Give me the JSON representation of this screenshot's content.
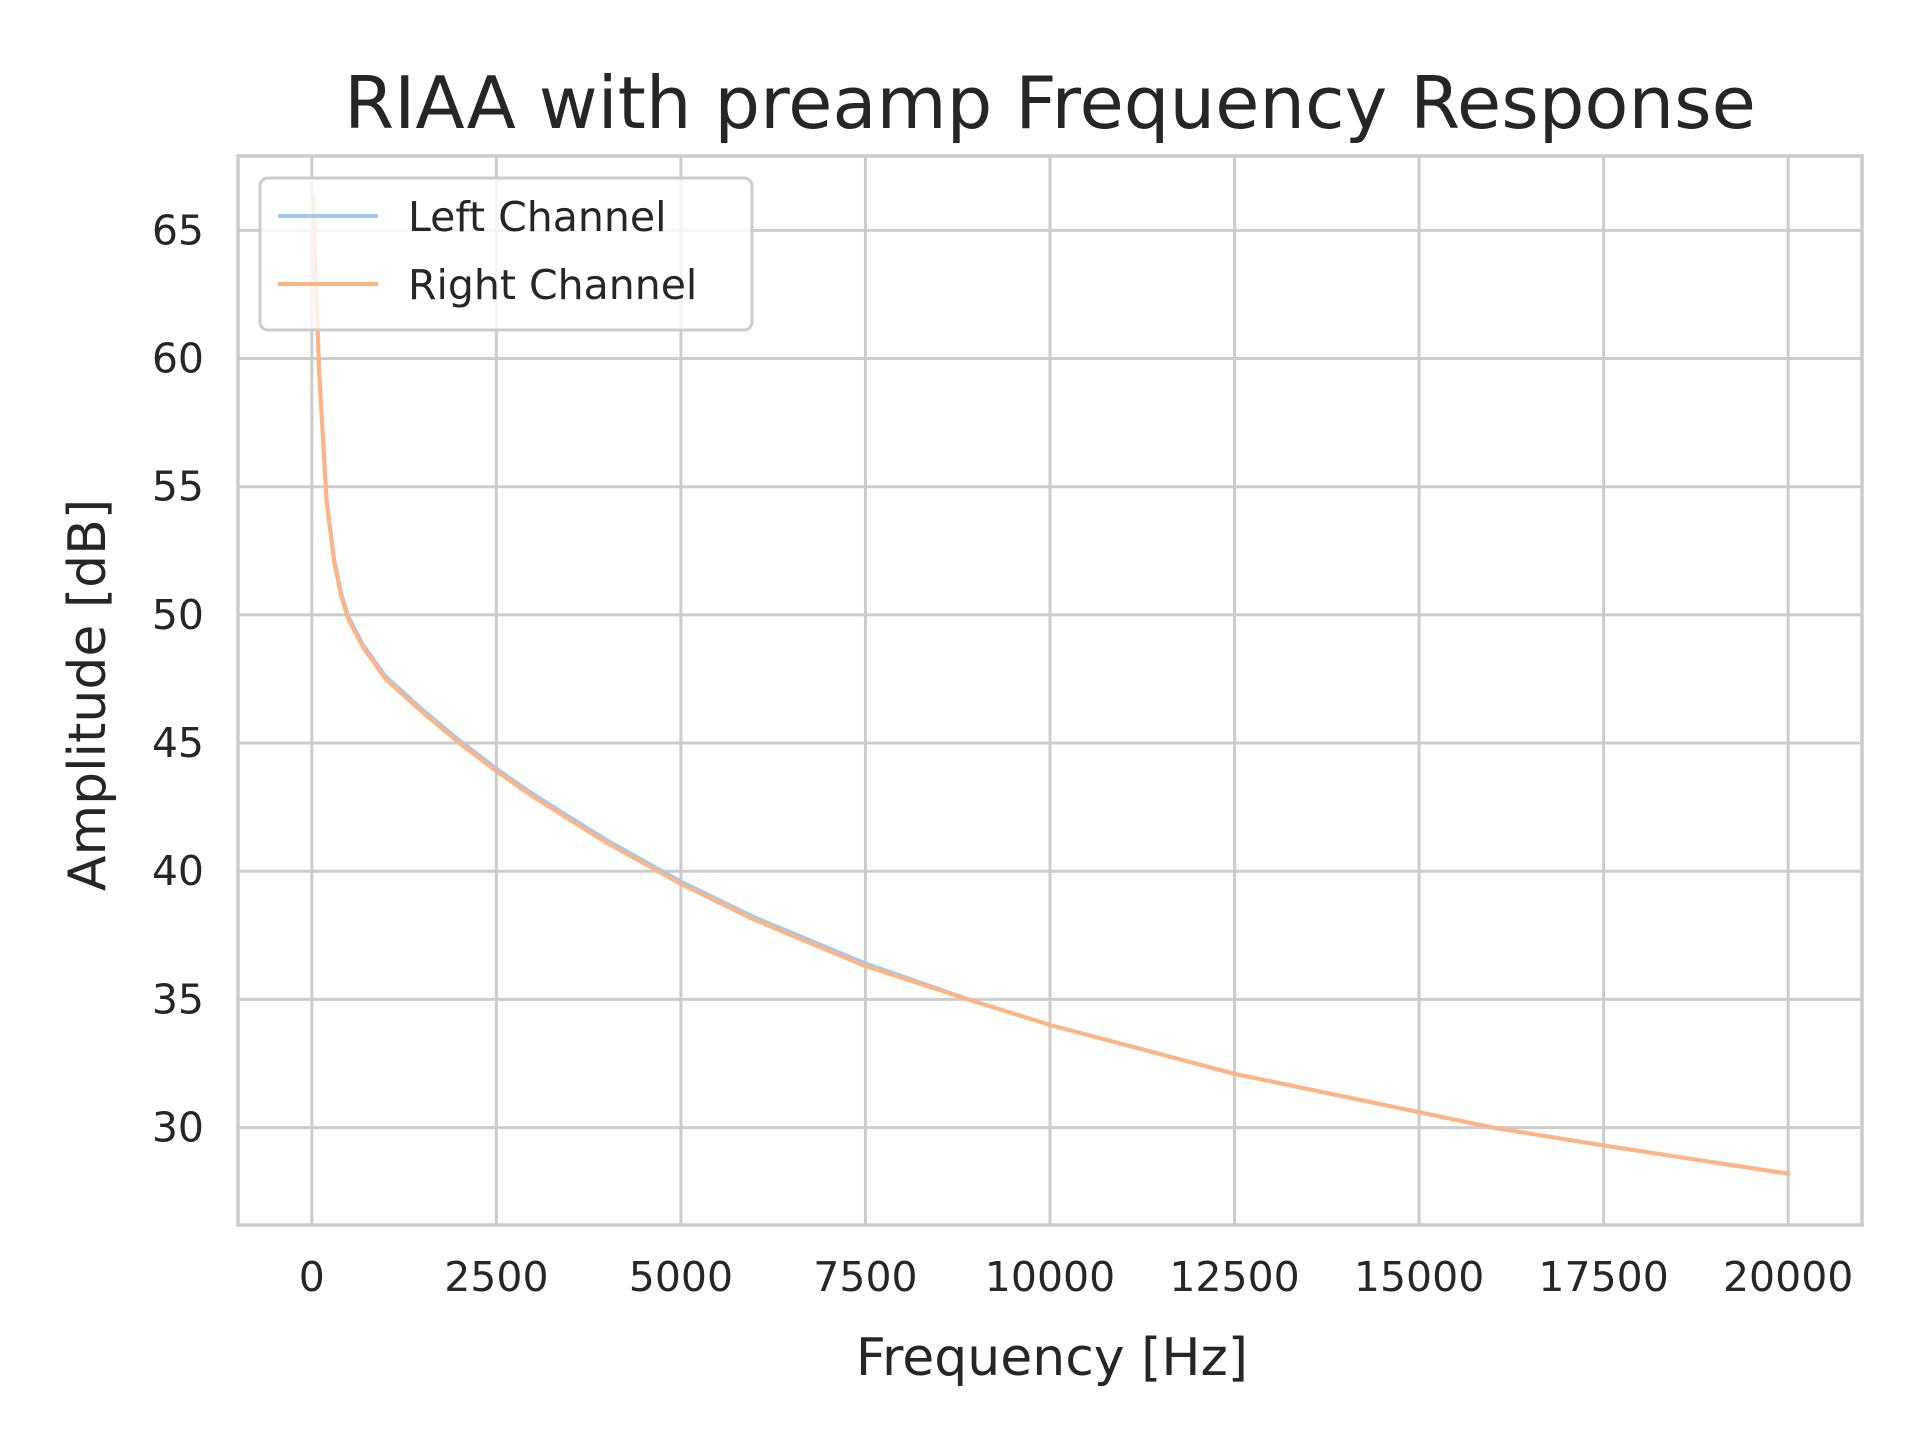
{
  "chart_data": {
    "type": "line",
    "title": "RIAA with preamp Frequency Response",
    "xlabel": "Frequency [Hz]",
    "ylabel": "Amplitude [dB]",
    "xlim": [
      -1000,
      21000
    ],
    "ylim": [
      26.2,
      67.9
    ],
    "xticks": [
      0,
      2500,
      5000,
      7500,
      10000,
      12500,
      15000,
      17500,
      20000
    ],
    "yticks": [
      30,
      35,
      40,
      45,
      50,
      55,
      60,
      65
    ],
    "grid": true,
    "legend": {
      "position": "top-left"
    },
    "series": [
      {
        "name": "Left Channel",
        "color": "#a1c9f4",
        "x": [
          20,
          50,
          100,
          200,
          300,
          400,
          500,
          700,
          1000,
          1500,
          2000,
          2500,
          3000,
          4000,
          5000,
          6000,
          7500,
          9000,
          10000,
          12500,
          15000,
          16000,
          17500,
          20000
        ],
        "y": [
          66.3,
          63.5,
          59.5,
          54.5,
          52.2,
          50.8,
          49.9,
          48.8,
          47.6,
          46.3,
          45.1,
          44.0,
          43.0,
          41.2,
          39.6,
          38.2,
          36.4,
          34.9,
          34.0,
          32.1,
          30.6,
          30.0,
          29.3,
          28.2
        ]
      },
      {
        "name": "Right Channel",
        "color": "#ffb482",
        "x": [
          20,
          50,
          100,
          200,
          300,
          400,
          500,
          700,
          1000,
          1500,
          2000,
          2500,
          3000,
          4000,
          5000,
          6000,
          7500,
          9000,
          10000,
          12500,
          15000,
          16000,
          17500,
          20000
        ],
        "y": [
          66.2,
          63.4,
          59.4,
          54.4,
          52.1,
          50.7,
          49.8,
          48.7,
          47.5,
          46.2,
          45.0,
          43.9,
          42.9,
          41.1,
          39.5,
          38.1,
          36.3,
          34.9,
          34.0,
          32.1,
          30.6,
          30.0,
          29.3,
          28.2
        ]
      }
    ]
  }
}
